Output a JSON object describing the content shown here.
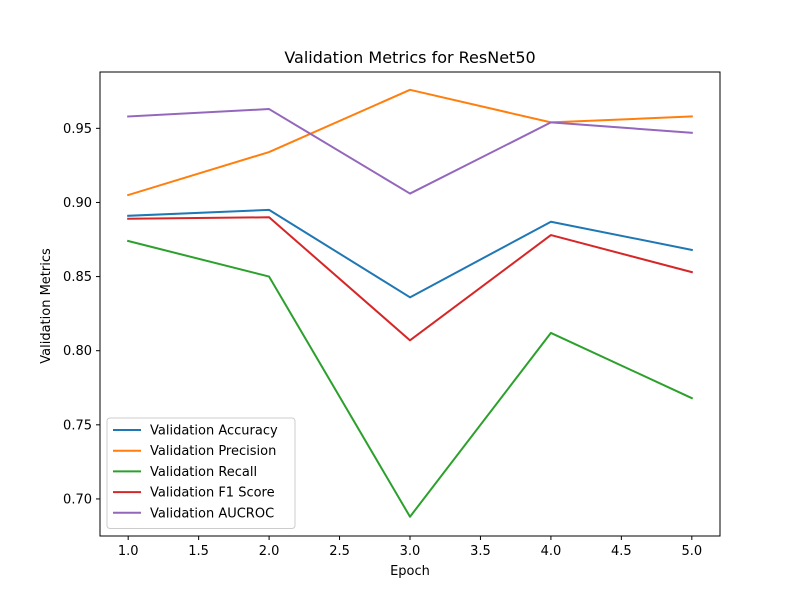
{
  "chart_data": {
    "type": "line",
    "title": "Validation Metrics for ResNet50",
    "xlabel": "Epoch",
    "ylabel": "Validation Metrics",
    "x": [
      1,
      2,
      3,
      4,
      5
    ],
    "xlim": [
      0.8,
      5.2
    ],
    "ylim": [
      0.675,
      0.988
    ],
    "xticks": [
      1.0,
      1.5,
      2.0,
      2.5,
      3.0,
      3.5,
      4.0,
      4.5,
      5.0
    ],
    "xtick_labels": [
      "1.0",
      "1.5",
      "2.0",
      "2.5",
      "3.0",
      "3.5",
      "4.0",
      "4.5",
      "5.0"
    ],
    "yticks": [
      0.7,
      0.75,
      0.8,
      0.85,
      0.9,
      0.95
    ],
    "ytick_labels": [
      "0.70",
      "0.75",
      "0.80",
      "0.85",
      "0.90",
      "0.95"
    ],
    "grid": false,
    "legend_position": "lower-left",
    "series": [
      {
        "name": "Validation Accuracy",
        "color": "#1f77b4",
        "values": [
          0.891,
          0.895,
          0.836,
          0.887,
          0.868
        ]
      },
      {
        "name": "Validation Precision",
        "color": "#ff7f0e",
        "values": [
          0.905,
          0.934,
          0.976,
          0.954,
          0.958
        ]
      },
      {
        "name": "Validation Recall",
        "color": "#2ca02c",
        "values": [
          0.874,
          0.85,
          0.688,
          0.812,
          0.768
        ]
      },
      {
        "name": "Validation F1 Score",
        "color": "#d62728",
        "values": [
          0.889,
          0.89,
          0.807,
          0.878,
          0.853
        ]
      },
      {
        "name": "Validation AUCROC",
        "color": "#9467bd",
        "values": [
          0.958,
          0.963,
          0.906,
          0.954,
          0.947
        ]
      }
    ]
  }
}
